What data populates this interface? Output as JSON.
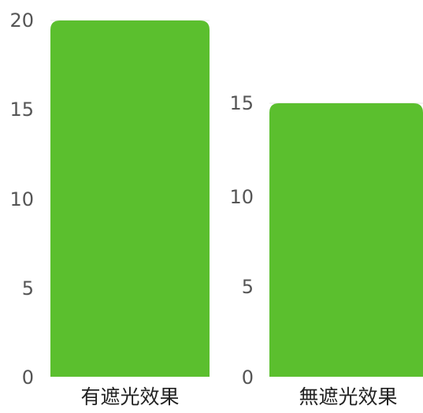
{
  "chart_data": [
    {
      "type": "bar",
      "categories": [
        "有遮光效果"
      ],
      "values": [
        20
      ],
      "yticks": [
        "0",
        "5",
        "10",
        "15",
        "20"
      ],
      "ylim": [
        0,
        20
      ],
      "bar_color": "#5bbf2e",
      "grid": false,
      "legend": "none"
    },
    {
      "type": "bar",
      "categories": [
        "無遮光效果"
      ],
      "values": [
        15
      ],
      "yticks": [
        "0",
        "5",
        "10",
        "15"
      ],
      "ylim": [
        0,
        15
      ],
      "bar_color": "#5bbf2e",
      "grid": false,
      "legend": "none"
    }
  ]
}
